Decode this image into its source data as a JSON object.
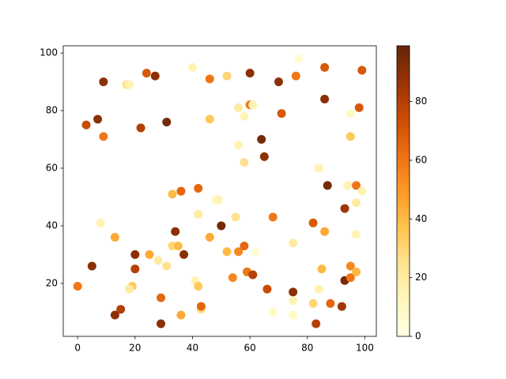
{
  "chart_data": {
    "type": "scatter",
    "x": [
      0,
      3,
      5,
      7,
      9,
      9,
      8,
      13,
      13,
      15,
      17,
      18,
      19,
      20,
      20,
      22,
      24,
      25,
      27,
      28,
      29,
      29,
      31,
      31,
      33,
      33,
      34,
      35,
      36,
      36,
      37,
      40,
      41,
      42,
      42,
      42,
      43,
      43,
      46,
      46,
      46,
      48,
      49,
      50,
      52,
      52,
      54,
      55,
      56,
      56,
      56,
      58,
      58,
      58,
      59,
      60,
      60,
      61,
      61,
      62,
      64,
      65,
      66,
      68,
      68,
      70,
      71,
      75,
      75,
      75,
      75,
      76,
      77,
      82,
      82,
      83,
      84,
      84,
      85,
      86,
      86,
      86,
      87,
      88,
      92,
      93,
      93,
      94,
      95,
      95,
      95,
      95,
      97,
      97,
      97,
      97,
      98,
      99,
      99,
      18
    ],
    "y": [
      19,
      75,
      26,
      77,
      90,
      71,
      41,
      36,
      9,
      11,
      89,
      89,
      19,
      30,
      25,
      74,
      93,
      30,
      92,
      28,
      15,
      6,
      26,
      76,
      51,
      33,
      38,
      33,
      52,
      9,
      30,
      95,
      21,
      19,
      44,
      53,
      11,
      12,
      91,
      77,
      36,
      49,
      49,
      40,
      92,
      31,
      22,
      43,
      81,
      68,
      31,
      78,
      62,
      33,
      24,
      93,
      82,
      82,
      23,
      31,
      70,
      64,
      18,
      43,
      10,
      90,
      79,
      34,
      17,
      14,
      9,
      92,
      98,
      13,
      41,
      6,
      60,
      18,
      25,
      95,
      84,
      38,
      54,
      13,
      12,
      46,
      21,
      54,
      79,
      71,
      26,
      22,
      54,
      48,
      37,
      24,
      81,
      52,
      94,
      18
    ],
    "c": [
      60,
      75,
      90,
      90,
      90,
      60,
      15,
      45,
      90,
      80,
      25,
      15,
      35,
      90,
      80,
      80,
      70,
      45,
      90,
      20,
      65,
      90,
      25,
      95,
      40,
      30,
      90,
      40,
      65,
      45,
      90,
      15,
      15,
      35,
      20,
      65,
      25,
      65,
      60,
      35,
      45,
      10,
      15,
      95,
      30,
      40,
      55,
      25,
      20,
      15,
      55,
      15,
      25,
      65,
      60,
      90,
      60,
      15,
      80,
      5,
      95,
      90,
      75,
      60,
      10,
      90,
      70,
      20,
      90,
      15,
      10,
      60,
      5,
      30,
      70,
      80,
      15,
      15,
      40,
      70,
      90,
      45,
      95,
      65,
      85,
      85,
      95,
      15,
      10,
      35,
      55,
      60,
      60,
      20,
      15,
      40,
      70,
      15,
      70,
      20
    ],
    "xlim": [
      -5,
      104
    ],
    "ylim": [
      1.6,
      102.5
    ],
    "xticks": [
      0,
      20,
      40,
      60,
      80,
      100
    ],
    "yticks": [
      20,
      40,
      60,
      80,
      100
    ],
    "clim": [
      0,
      99
    ],
    "cticks": [
      0,
      20,
      40,
      60,
      80
    ],
    "colormap": [
      "#ffffe5",
      "#fff7bc",
      "#fee391",
      "#fec44f",
      "#fe9929",
      "#ec7014",
      "#cc4c02",
      "#993404",
      "#662506"
    ]
  }
}
